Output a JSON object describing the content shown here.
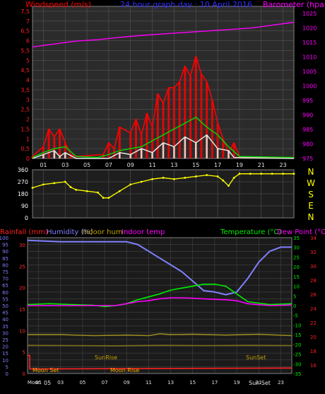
{
  "chart_data": [
    {
      "type": "line",
      "title": "24 hour graph day : 10 April 2016",
      "ylabel": "Windspeed (m/s)",
      "y2label": "Barometer (hpa)",
      "x_ticks": [
        "01",
        "03",
        "05",
        "07",
        "09",
        "11",
        "13",
        "15",
        "17",
        "19",
        "21",
        "23"
      ],
      "ylim": [
        0,
        7.75
      ],
      "y_ticks": [
        "0",
        "0,5",
        "1",
        "1,5",
        "2",
        "2,5",
        "3",
        "3,5",
        "4",
        "4,5",
        "5",
        "5,5",
        "6",
        "6,5",
        "7",
        "7,5"
      ],
      "y2lim": [
        975,
        1027.5
      ],
      "y2_ticks": [
        "975",
        "980",
        "985",
        "990",
        "995",
        "1000",
        "1005",
        "1010",
        "1015",
        "1020",
        "1025"
      ],
      "grid": true,
      "colors": {
        "gust": "#ff0000",
        "average": "#00dd00",
        "speed": "#e8f0e8",
        "barometer": "#ff00ff"
      },
      "series": [
        {
          "kind": "barometer",
          "color": "#ff00ff",
          "x": [
            0,
            2,
            4,
            6,
            8,
            10,
            12,
            14,
            16,
            18,
            20,
            22,
            24
          ],
          "values": [
            1013.5,
            1014.5,
            1015.5,
            1016,
            1016.8,
            1017.5,
            1018,
            1018.5,
            1019,
            1019.5,
            1020,
            1021,
            1022
          ]
        },
        {
          "kind": "gust",
          "color": "#ff0000",
          "x": [
            0,
            1,
            1.5,
            2,
            2.5,
            3,
            3.5,
            4,
            6.5,
            7,
            7.5,
            8,
            9,
            9.5,
            10,
            10.5,
            11,
            11.5,
            12,
            12.5,
            13,
            13.5,
            14,
            14.5,
            15,
            15.5,
            16,
            16.5,
            17,
            17.5,
            18,
            18.5,
            19,
            19.5,
            24
          ],
          "values": [
            0.1,
            0.6,
            1.5,
            1.1,
            1.5,
            0.8,
            0.2,
            0.1,
            0.2,
            0.8,
            0.5,
            1.6,
            1.3,
            2.0,
            1.2,
            2.3,
            1.6,
            3.3,
            2.8,
            3.6,
            3.6,
            3.9,
            4.7,
            4.2,
            5.2,
            4.3,
            3.9,
            3.0,
            1.8,
            1.0,
            0.3,
            0.8,
            0.1,
            0.05,
            0.05
          ]
        },
        {
          "kind": "average",
          "color": "#00dd00",
          "x": [
            0,
            1,
            2,
            3,
            4,
            6,
            7,
            8,
            9,
            10,
            11,
            12,
            13,
            14,
            15,
            16,
            17,
            18,
            19,
            24
          ],
          "values": [
            0.05,
            0.3,
            0.5,
            0.6,
            0.1,
            0.05,
            0.2,
            0.4,
            0.5,
            0.6,
            0.9,
            1.2,
            1.5,
            1.8,
            2.1,
            1.6,
            1.2,
            0.6,
            0.1,
            0.05
          ]
        },
        {
          "kind": "speed",
          "color": "#e8f0e8",
          "x": [
            0,
            1,
            2,
            2.5,
            3,
            4,
            7,
            8,
            9,
            10,
            11,
            12,
            13,
            14,
            15,
            16,
            17,
            18,
            18.5,
            24
          ],
          "values": [
            0,
            0.2,
            0.4,
            0.1,
            0.3,
            0,
            0,
            0.3,
            0.2,
            0.5,
            0.3,
            0.8,
            0.6,
            1.1,
            0.8,
            1.2,
            0.5,
            0.4,
            0.05,
            0
          ]
        }
      ]
    },
    {
      "type": "scatter",
      "title": "",
      "ylabel": "",
      "x_ticks": [],
      "ylim": [
        0,
        360
      ],
      "y_ticks": [
        "0",
        "90",
        "180",
        "270",
        "360"
      ],
      "compass": [
        "N",
        "W",
        "S",
        "E",
        "N"
      ],
      "grid": true,
      "colors": {
        "direction": "#ffff00"
      },
      "series": [
        {
          "kind": "direction",
          "color": "#ffff00",
          "x": [
            0,
            1,
            2,
            3,
            3.5,
            4,
            5,
            6,
            6.5,
            7,
            8,
            9,
            10,
            11,
            12,
            13,
            14,
            15,
            16,
            17,
            17.5,
            18,
            18.5,
            19,
            20,
            21,
            22,
            23,
            24
          ],
          "values": [
            225,
            250,
            260,
            270,
            230,
            210,
            200,
            190,
            150,
            150,
            200,
            250,
            270,
            290,
            300,
            290,
            300,
            310,
            320,
            310,
            280,
            240,
            300,
            330,
            330,
            330,
            330,
            330,
            330
          ]
        }
      ]
    },
    {
      "type": "line",
      "title": "",
      "legend": [
        {
          "text": "Rainfall (mm)",
          "color": "#ff2020"
        },
        {
          "text": "Humidity (%)",
          "color": "#8080ff"
        },
        {
          "text": "Indoor hum",
          "color": "#c0a000"
        },
        {
          "text": "Indoor temp",
          "color": "#ff00ff"
        },
        {
          "text": "Temperature (°C)",
          "color": "#00ee00"
        },
        {
          "text": "Dew Point (°C)",
          "color": "#ff00ff"
        }
      ],
      "x_ticks": [
        "Moon",
        "01",
        "03",
        "05",
        "07",
        "09",
        "11",
        "13",
        "15",
        "17",
        "19",
        "21",
        "23"
      ],
      "annotations": [
        "Moon Set",
        "SunRise",
        "Moon Rise",
        "SunSet",
        "Sun Set",
        "05"
      ],
      "ylim": [
        0,
        100
      ],
      "y_ticks": [
        "0",
        "5",
        "10",
        "15",
        "20",
        "25",
        "30",
        "35",
        "40",
        "45",
        "50",
        "55",
        "60",
        "65",
        "70",
        "75",
        "80",
        "85",
        "90",
        "95",
        "100"
      ],
      "rain_ticks": [
        "0",
        "5",
        "10",
        "15",
        "20",
        "25",
        "30"
      ],
      "y2lim": [
        -35,
        35
      ],
      "y2_ticks": [
        "-35",
        "-30",
        "-25",
        "-20",
        "-15",
        "-10",
        "-5",
        "0",
        "5",
        "10",
        "15",
        "20",
        "25",
        "30",
        "35"
      ],
      "indoor_ticks": [
        "16",
        "18",
        "20",
        "22",
        "24",
        "26",
        "28",
        "30",
        "32",
        "34"
      ],
      "grid": true,
      "series": [
        {
          "kind": "humidity",
          "color": "#8080ff",
          "x": [
            0,
            3,
            6,
            9,
            10,
            11,
            12,
            13,
            14,
            15,
            16,
            17,
            18,
            19,
            20,
            21,
            22,
            23,
            24
          ],
          "values": [
            98,
            97,
            97,
            97,
            95,
            90,
            85,
            80,
            75,
            68,
            61,
            60,
            58,
            60,
            70,
            82,
            90,
            93,
            93
          ]
        },
        {
          "kind": "temperature",
          "color": "#00ee00",
          "x": [
            0,
            2,
            4,
            6,
            7,
            8,
            9,
            10,
            11,
            12,
            13,
            14,
            15,
            16,
            17,
            18,
            19,
            20,
            22,
            24
          ],
          "values": [
            0.5,
            1,
            0.5,
            0.2,
            -0.5,
            0,
            1,
            3,
            4.5,
            6,
            8,
            9,
            10,
            11,
            11,
            10,
            6,
            2,
            0.5,
            1
          ]
        },
        {
          "kind": "dewpoint",
          "color": "#ff00ff",
          "x": [
            0,
            2,
            4,
            6,
            8,
            9,
            10,
            11,
            12,
            13,
            14,
            15,
            16,
            17,
            18,
            19,
            20,
            22,
            24
          ],
          "values": [
            0,
            0,
            0,
            0,
            0,
            1,
            2,
            2.5,
            3.5,
            4,
            4,
            3.8,
            3.5,
            3.2,
            3,
            2.5,
            1,
            0,
            0.3
          ]
        },
        {
          "kind": "indoorhum",
          "color": "#9a8a20",
          "x": [
            0,
            3,
            6,
            9,
            11,
            12,
            13,
            15,
            18,
            21,
            24
          ],
          "values": [
            -15,
            -15,
            -15.5,
            -15.2,
            -15.5,
            -14.6,
            -15,
            -14.8,
            -15.2,
            -14.8,
            -15.5
          ]
        },
        {
          "kind": "indoortemp",
          "color": "#7a6a18",
          "x": [
            0,
            4,
            8,
            12,
            16,
            20,
            24
          ],
          "values": [
            -20.5,
            -20.6,
            -20.7,
            -20.5,
            -20.6,
            -20.5,
            -20.6
          ]
        },
        {
          "kind": "rain",
          "color": "#ff2020",
          "x": [
            0,
            0.2,
            0.2,
            24
          ],
          "values": [
            4,
            4,
            1,
            1.2
          ]
        }
      ]
    }
  ]
}
